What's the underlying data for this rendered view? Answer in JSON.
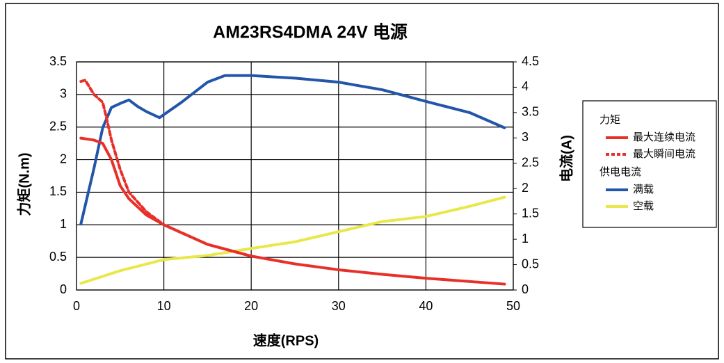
{
  "chart_data": {
    "type": "line",
    "title": "AM23RS4DMA 24V 电源",
    "xlabel": "速度(RPS)",
    "ylabel": "力矩(N.m)",
    "y2label": "电流(A)",
    "xlim": [
      0,
      50
    ],
    "xticks": [
      0,
      10,
      20,
      30,
      40,
      50
    ],
    "ylim": [
      0,
      3.5
    ],
    "yticks": [
      0,
      0.5,
      1,
      1.5,
      2,
      2.5,
      3,
      3.5
    ],
    "y2lim": [
      0,
      4.5
    ],
    "y2ticks": [
      0,
      0.5,
      1,
      1.5,
      2,
      2.5,
      3,
      3.5,
      4,
      4.5
    ],
    "grid": true,
    "legend_position": "right",
    "legend_titles": [
      "力矩",
      "供电电流"
    ],
    "series": [
      {
        "name": "最大连续电流",
        "color": "#e8302a",
        "linestyle": "solid",
        "x": [
          0.5,
          2,
          3,
          4,
          5,
          6,
          8,
          10,
          15,
          20,
          25,
          30,
          35,
          40,
          45,
          49
        ],
        "values": [
          2.33,
          2.3,
          2.25,
          2.0,
          1.6,
          1.4,
          1.15,
          1.0,
          0.7,
          0.52,
          0.4,
          0.31,
          0.24,
          0.18,
          0.13,
          0.09
        ]
      },
      {
        "name": "最大瞬间电流",
        "color": "#e8302a",
        "linestyle": "dashed",
        "x": [
          0.5,
          1,
          2,
          3,
          3.5,
          4,
          5,
          6,
          8,
          10,
          15,
          20
        ],
        "values": [
          3.2,
          3.22,
          3.0,
          2.88,
          2.6,
          2.3,
          1.85,
          1.5,
          1.2,
          1.0,
          0.7,
          0.52
        ]
      },
      {
        "name": "满载",
        "color": "#2356a8",
        "linestyle": "solid",
        "axis": "y2",
        "x": [
          0.5,
          2,
          3,
          4,
          5,
          6,
          7,
          8,
          9.5,
          12,
          15,
          17,
          20,
          25,
          30,
          35,
          40,
          45,
          49
        ],
        "values": [
          1.3,
          2.4,
          3.2,
          3.6,
          3.68,
          3.75,
          3.62,
          3.52,
          3.4,
          3.7,
          4.1,
          4.23,
          4.23,
          4.18,
          4.1,
          3.95,
          3.72,
          3.5,
          3.2
        ]
      },
      {
        "name": "空载",
        "color": "#e8e84a",
        "linestyle": "solid",
        "axis": "y2",
        "x": [
          0.5,
          5,
          10,
          15,
          20,
          25,
          30,
          35,
          40,
          45,
          49
        ],
        "values": [
          0.13,
          0.38,
          0.6,
          0.68,
          0.82,
          0.95,
          1.15,
          1.35,
          1.45,
          1.65,
          1.83
        ]
      }
    ]
  }
}
